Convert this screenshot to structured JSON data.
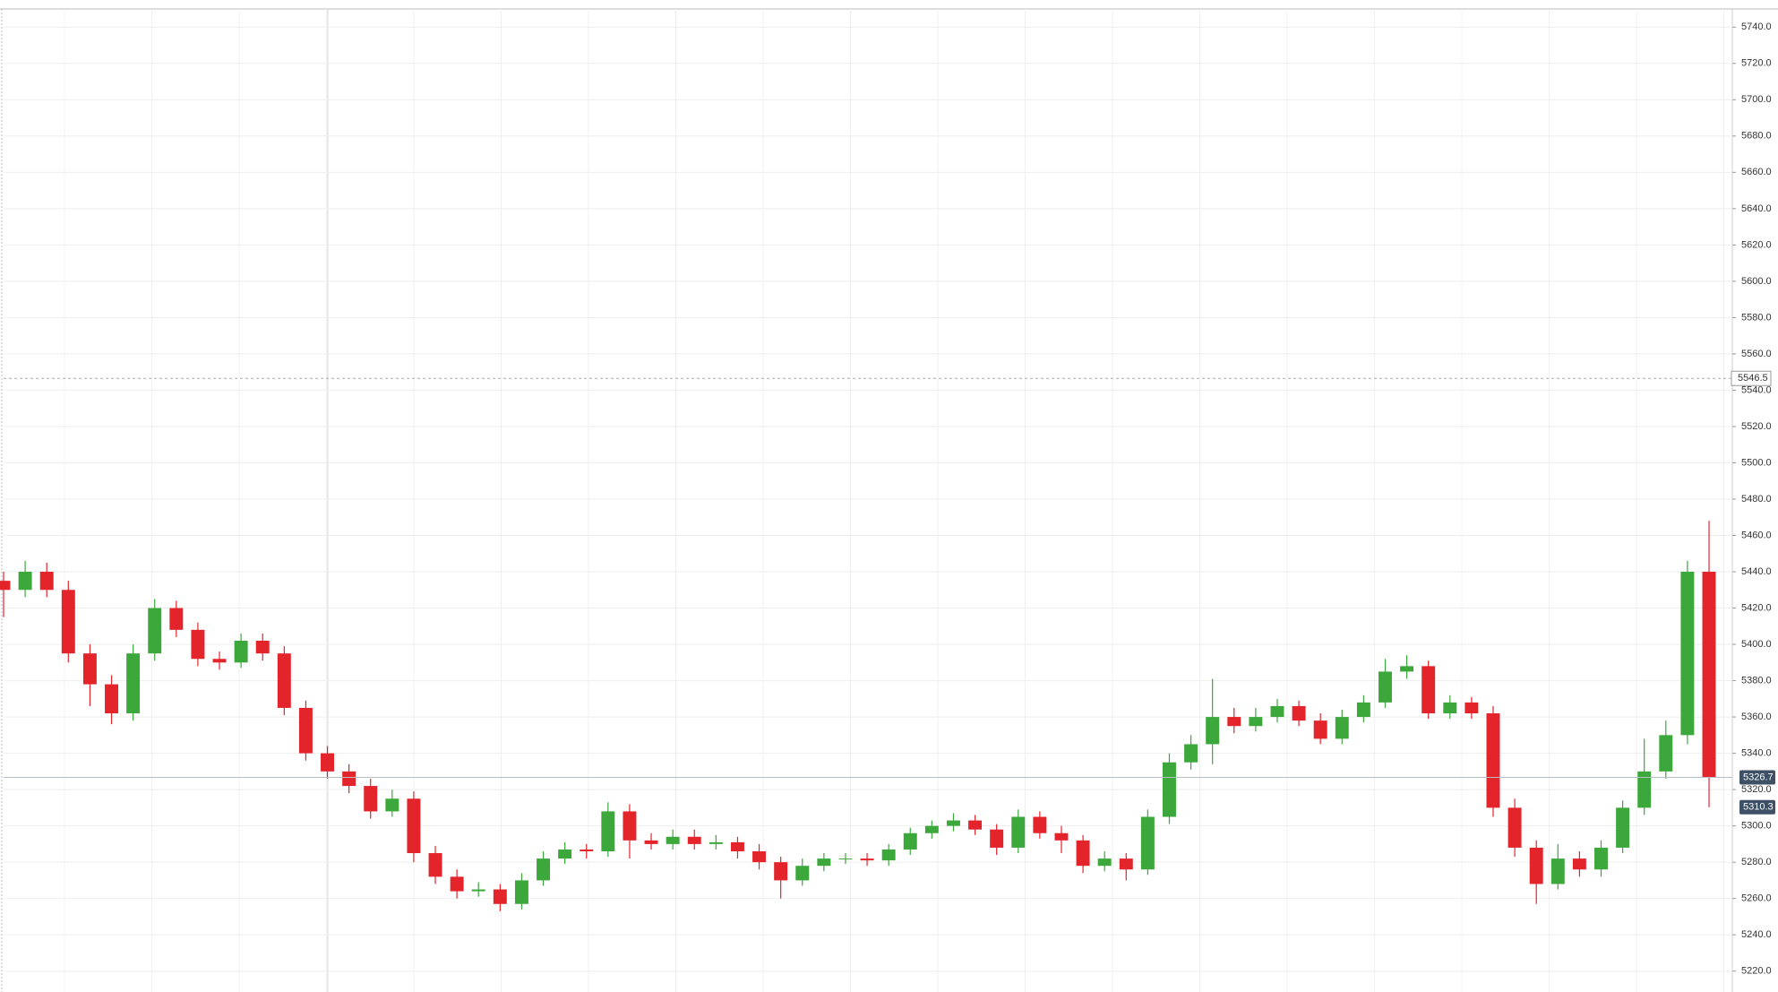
{
  "chart_data": {
    "type": "candlestick",
    "open": [
      5435,
      5430,
      5440,
      5430,
      5395,
      5378,
      5362,
      5395,
      5420,
      5408,
      5392,
      5390,
      5402,
      5395,
      5365,
      5340,
      5330,
      5322,
      5308,
      5315,
      5285,
      5272,
      5264,
      5265,
      5257,
      5270,
      5282,
      5287,
      5286,
      5308,
      5292,
      5290,
      5294,
      5290,
      5291,
      5286,
      5280,
      5270,
      5278,
      5282,
      5282,
      5281,
      5287,
      5296,
      5300,
      5303,
      5298,
      5288,
      5305,
      5296,
      5292,
      5278,
      5282,
      5276,
      5305,
      5335,
      5345,
      5360,
      5355,
      5360,
      5366,
      5358,
      5348,
      5360,
      5368,
      5385,
      5388,
      5362,
      5368,
      5362,
      5310,
      5288,
      5268,
      5282,
      5276,
      5288,
      5310,
      5330,
      5350,
      5440
    ],
    "high": [
      5440,
      5446,
      5445,
      5435,
      5400,
      5383,
      5400,
      5425,
      5424,
      5412,
      5396,
      5406,
      5406,
      5399,
      5369,
      5344,
      5334,
      5326,
      5320,
      5319,
      5289,
      5276,
      5269,
      5268,
      5274,
      5286,
      5291,
      5290,
      5313,
      5312,
      5296,
      5298,
      5298,
      5295,
      5294,
      5290,
      5283,
      5282,
      5285,
      5285,
      5285,
      5290,
      5299,
      5303,
      5307,
      5306,
      5301,
      5309,
      5308,
      5300,
      5295,
      5286,
      5285,
      5309,
      5340,
      5350,
      5381,
      5365,
      5365,
      5370,
      5369,
      5362,
      5364,
      5372,
      5392,
      5394,
      5391,
      5372,
      5371,
      5366,
      5315,
      5292,
      5290,
      5286,
      5292,
      5314,
      5348,
      5358,
      5446,
      5468
    ],
    "low": [
      5415,
      5426,
      5426,
      5390,
      5366,
      5356,
      5358,
      5391,
      5404,
      5388,
      5386,
      5387,
      5391,
      5361,
      5336,
      5326,
      5318,
      5304,
      5305,
      5280,
      5268,
      5260,
      5261,
      5253,
      5254,
      5267,
      5279,
      5282,
      5283,
      5282,
      5287,
      5287,
      5287,
      5287,
      5282,
      5276,
      5260,
      5267,
      5275,
      5279,
      5278,
      5278,
      5284,
      5293,
      5297,
      5295,
      5284,
      5285,
      5293,
      5285,
      5274,
      5275,
      5270,
      5273,
      5301,
      5331,
      5334,
      5351,
      5352,
      5357,
      5355,
      5345,
      5345,
      5357,
      5365,
      5381,
      5359,
      5359,
      5359,
      5305,
      5283,
      5257,
      5265,
      5272,
      5272,
      5285,
      5306,
      5326,
      5345,
      5310.3
    ],
    "close": [
      5430,
      5440,
      5430,
      5395,
      5378,
      5362,
      5395,
      5420,
      5408,
      5392,
      5390,
      5402,
      5395,
      5365,
      5340,
      5330,
      5322,
      5308,
      5315,
      5285,
      5272,
      5264,
      5265,
      5257,
      5270,
      5282,
      5287,
      5286,
      5308,
      5292,
      5290,
      5294,
      5290,
      5291,
      5286,
      5280,
      5270,
      5278,
      5282,
      5282,
      5281,
      5287,
      5296,
      5300,
      5303,
      5298,
      5288,
      5305,
      5296,
      5292,
      5278,
      5282,
      5276,
      5305,
      5335,
      5345,
      5360,
      5355,
      5360,
      5366,
      5358,
      5348,
      5360,
      5368,
      5385,
      5388,
      5362,
      5368,
      5362,
      5310,
      5288,
      5268,
      5282,
      5276,
      5288,
      5310,
      5330,
      5350,
      5440,
      5326.7
    ],
    "up_color": "#3ca83c",
    "down_color": "#e3242b",
    "ylim": [
      5208.5,
      5750
    ],
    "yticks": [
      {
        "value": 5220,
        "label": "5220.0"
      },
      {
        "value": 5240,
        "label": "5240.0"
      },
      {
        "value": 5260,
        "label": "5260.0"
      },
      {
        "value": 5280,
        "label": "5280.0"
      },
      {
        "value": 5300,
        "label": "5300.0"
      },
      {
        "value": 5320,
        "label": "5320.0"
      },
      {
        "value": 5340,
        "label": "5340.0"
      },
      {
        "value": 5360,
        "label": "5360.0"
      },
      {
        "value": 5380,
        "label": "5380.0"
      },
      {
        "value": 5400,
        "label": "5400.0"
      },
      {
        "value": 5420,
        "label": "5420.0"
      },
      {
        "value": 5440,
        "label": "5440.0"
      },
      {
        "value": 5460,
        "label": "5460.0"
      },
      {
        "value": 5480,
        "label": "5480.0"
      },
      {
        "value": 5500,
        "label": "5500.0"
      },
      {
        "value": 5520,
        "label": "5520.0"
      },
      {
        "value": 5540,
        "label": "5540.0"
      },
      {
        "value": 5560,
        "label": "5560.0"
      },
      {
        "value": 5580,
        "label": "5580.0"
      },
      {
        "value": 5600,
        "label": "5600.0"
      },
      {
        "value": 5620,
        "label": "5620.0"
      },
      {
        "value": 5640,
        "label": "5640.0"
      },
      {
        "value": 5660,
        "label": "5660.0"
      },
      {
        "value": 5680,
        "label": "5680.0"
      },
      {
        "value": 5700,
        "label": "5700.0"
      },
      {
        "value": 5720,
        "label": "5720.0"
      },
      {
        "value": 5740,
        "label": "5740.0"
      }
    ],
    "grid": true,
    "crosshair_y": 5546.5,
    "price_labels": [
      5326.7,
      5310.3
    ],
    "price_label_color": "#3d5066"
  }
}
